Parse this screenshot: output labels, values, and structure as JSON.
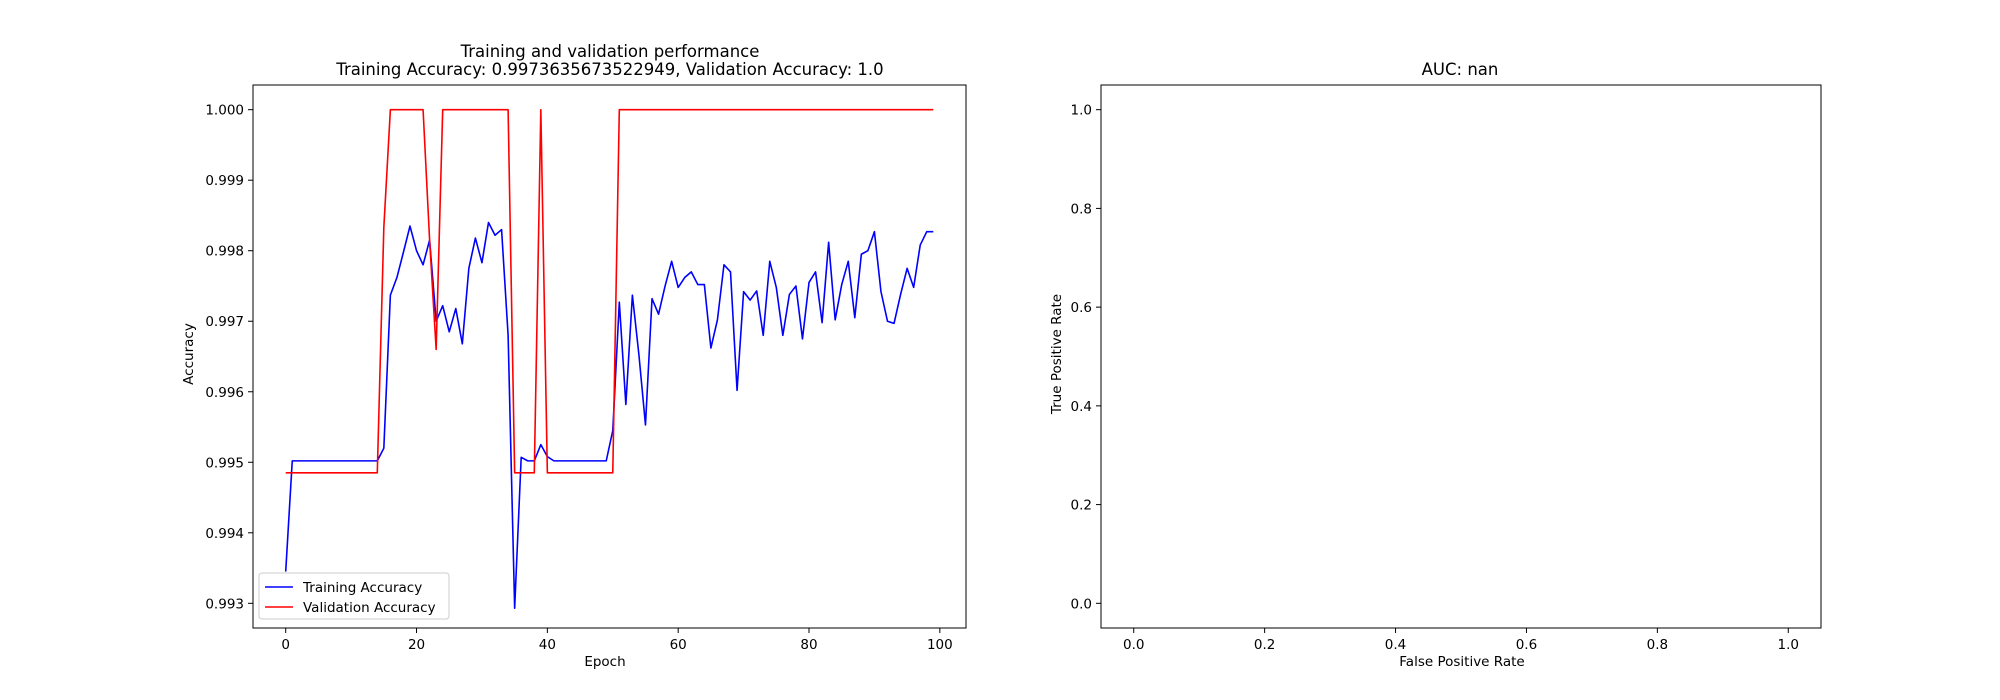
{
  "chart_data": [
    {
      "type": "line",
      "title": "Training and validation performance",
      "subtitle": "Training Accuracy: 0.9973635673522949, Validation Accuracy: 1.0",
      "xlabel": "Epoch",
      "ylabel": "Accuracy",
      "xlim": [
        -5,
        104
      ],
      "ylim": [
        0.99265,
        1.00035
      ],
      "xticks": [
        "0",
        "20",
        "40",
        "60",
        "80",
        "100"
      ],
      "yticks": [
        "0.993",
        "0.994",
        "0.995",
        "0.996",
        "0.997",
        "0.998",
        "0.999",
        "1.000"
      ],
      "legend": {
        "placement": "lower-left",
        "entries": [
          "Training Accuracy",
          "Validation Accuracy"
        ]
      },
      "grid": false,
      "series": [
        {
          "name": "Training Accuracy",
          "color": "#0000ff",
          "x": [
            0,
            1,
            2,
            3,
            4,
            5,
            6,
            7,
            8,
            9,
            10,
            11,
            12,
            13,
            14,
            15,
            16,
            17,
            18,
            19,
            20,
            21,
            22,
            23,
            24,
            25,
            26,
            27,
            28,
            29,
            30,
            31,
            32,
            33,
            34,
            35,
            36,
            37,
            38,
            39,
            40,
            41,
            42,
            43,
            44,
            45,
            46,
            47,
            48,
            49,
            50,
            51,
            52,
            53,
            54,
            55,
            56,
            57,
            58,
            59,
            60,
            61,
            62,
            63,
            64,
            65,
            66,
            67,
            68,
            69,
            70,
            71,
            72,
            73,
            74,
            75,
            76,
            77,
            78,
            79,
            80,
            81,
            82,
            83,
            84,
            85,
            86,
            87,
            88,
            89,
            90,
            91,
            92,
            93,
            94,
            95,
            96,
            97,
            98,
            99
          ],
          "values": [
            0.99345,
            0.99502,
            0.99502,
            0.99502,
            0.99502,
            0.99502,
            0.99502,
            0.99502,
            0.99502,
            0.99502,
            0.99502,
            0.99502,
            0.99502,
            0.99502,
            0.99502,
            0.9952,
            0.99737,
            0.99762,
            0.99798,
            0.99835,
            0.998,
            0.9978,
            0.99815,
            0.997,
            0.99722,
            0.99685,
            0.99718,
            0.99668,
            0.99775,
            0.99818,
            0.99783,
            0.9984,
            0.99822,
            0.9983,
            0.9968,
            0.99293,
            0.99507,
            0.99502,
            0.99502,
            0.99525,
            0.99508,
            0.99502,
            0.99502,
            0.99502,
            0.99502,
            0.99502,
            0.99502,
            0.99502,
            0.99502,
            0.99502,
            0.99545,
            0.99727,
            0.99582,
            0.99737,
            0.99652,
            0.99553,
            0.99732,
            0.9971,
            0.9975,
            0.99785,
            0.99748,
            0.99762,
            0.9977,
            0.99752,
            0.99752,
            0.99662,
            0.99702,
            0.9978,
            0.9977,
            0.99602,
            0.99742,
            0.9973,
            0.99743,
            0.9968,
            0.99785,
            0.99748,
            0.9968,
            0.99738,
            0.9975,
            0.99675,
            0.99755,
            0.9977,
            0.99698,
            0.99812,
            0.99702,
            0.99752,
            0.99785,
            0.99705,
            0.99795,
            0.998,
            0.99827,
            0.99742,
            0.997,
            0.99697,
            0.99738,
            0.99775,
            0.99748,
            0.99808,
            0.99827,
            0.99827
          ]
        },
        {
          "name": "Validation Accuracy",
          "color": "#ff0000",
          "x": [
            0,
            1,
            2,
            3,
            4,
            5,
            6,
            7,
            8,
            9,
            10,
            11,
            12,
            13,
            14,
            15,
            16,
            17,
            18,
            19,
            20,
            21,
            22,
            23,
            24,
            25,
            26,
            27,
            28,
            29,
            30,
            31,
            32,
            33,
            34,
            35,
            36,
            37,
            38,
            39,
            40,
            41,
            42,
            43,
            44,
            45,
            46,
            47,
            48,
            49,
            50,
            51,
            52,
            53,
            54,
            55,
            56,
            57,
            58,
            59,
            60,
            61,
            62,
            63,
            64,
            65,
            66,
            67,
            68,
            69,
            70,
            71,
            72,
            73,
            74,
            75,
            76,
            77,
            78,
            79,
            80,
            81,
            82,
            83,
            84,
            85,
            86,
            87,
            88,
            89,
            90,
            91,
            92,
            93,
            94,
            95,
            96,
            97,
            98,
            99
          ],
          "values": [
            0.99485,
            0.99485,
            0.99485,
            0.99485,
            0.99485,
            0.99485,
            0.99485,
            0.99485,
            0.99485,
            0.99485,
            0.99485,
            0.99485,
            0.99485,
            0.99485,
            0.99485,
            0.99833,
            1.0,
            1.0,
            1.0,
            1.0,
            1.0,
            1.0,
            0.99815,
            0.9966,
            1.0,
            1.0,
            1.0,
            1.0,
            1.0,
            1.0,
            1.0,
            1.0,
            1.0,
            1.0,
            1.0,
            0.99485,
            0.99485,
            0.99485,
            0.99485,
            1.0,
            0.99485,
            0.99485,
            0.99485,
            0.99485,
            0.99485,
            0.99485,
            0.99485,
            0.99485,
            0.99485,
            0.99485,
            0.99485,
            1.0,
            1.0,
            1.0,
            1.0,
            1.0,
            1.0,
            1.0,
            1.0,
            1.0,
            1.0,
            1.0,
            1.0,
            1.0,
            1.0,
            1.0,
            1.0,
            1.0,
            1.0,
            1.0,
            1.0,
            1.0,
            1.0,
            1.0,
            1.0,
            1.0,
            1.0,
            1.0,
            1.0,
            1.0,
            1.0,
            1.0,
            1.0,
            1.0,
            1.0,
            1.0,
            1.0,
            1.0,
            1.0,
            1.0,
            1.0,
            1.0,
            1.0,
            1.0,
            1.0,
            1.0,
            1.0,
            1.0,
            1.0,
            1.0
          ]
        }
      ]
    },
    {
      "type": "line",
      "title": "AUC: nan",
      "xlabel": "False Positive Rate",
      "ylabel": "True Positive Rate",
      "xlim": [
        -0.05,
        1.05
      ],
      "ylim": [
        -0.05,
        1.05
      ],
      "xticks": [
        "0.0",
        "0.2",
        "0.4",
        "0.6",
        "0.8",
        "1.0"
      ],
      "yticks": [
        "0.0",
        "0.2",
        "0.4",
        "0.6",
        "0.8",
        "1.0"
      ],
      "grid": false,
      "series": []
    }
  ]
}
